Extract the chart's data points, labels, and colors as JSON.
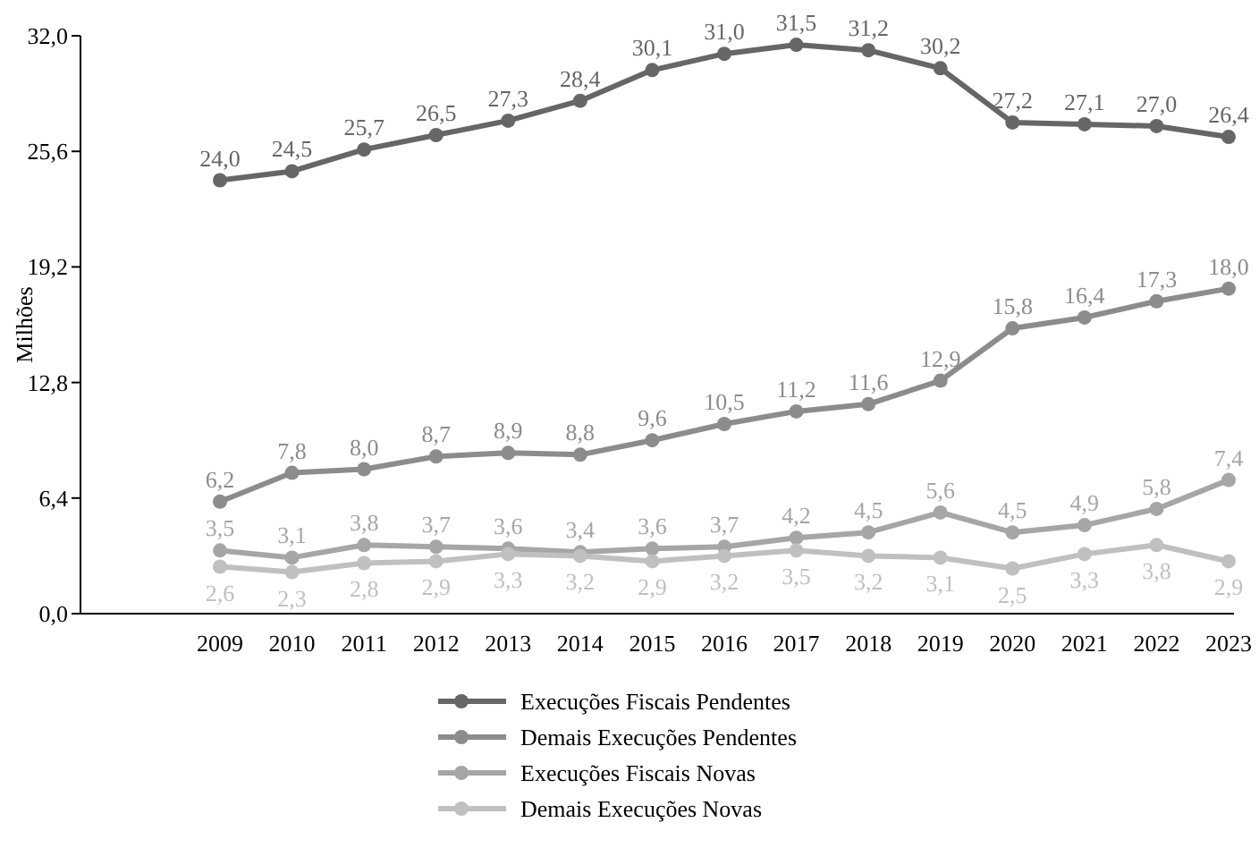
{
  "chart_data": {
    "type": "line",
    "ylabel": "Milhões",
    "categories": [
      "2009",
      "2010",
      "2011",
      "2012",
      "2013",
      "2014",
      "2015",
      "2016",
      "2017",
      "2018",
      "2019",
      "2020",
      "2021",
      "2022",
      "2023"
    ],
    "ylim": [
      0,
      32
    ],
    "yticks": [
      {
        "value": 0,
        "label": "0,0"
      },
      {
        "value": 6.4,
        "label": "6,4"
      },
      {
        "value": 12.8,
        "label": "12,8"
      },
      {
        "value": 19.2,
        "label": "19,2"
      },
      {
        "value": 25.6,
        "label": "25,6"
      },
      {
        "value": 32,
        "label": "32,0"
      }
    ],
    "grid": false,
    "legend": "bottom",
    "marker": "circle",
    "line_style": "solid",
    "series": [
      {
        "name": "Execuções Fiscais Pendentes",
        "color": "#666666",
        "values": [
          24.0,
          24.5,
          25.7,
          26.5,
          27.3,
          28.4,
          30.1,
          31.0,
          31.5,
          31.2,
          30.2,
          27.2,
          27.1,
          27.0,
          26.4
        ],
        "value_labels": [
          "24,0",
          "24,5",
          "25,7",
          "26,5",
          "27,3",
          "28,4",
          "30,1",
          "31,0",
          "31,5",
          "31,2",
          "30,2",
          "27,2",
          "27,1",
          "27,0",
          "26,4"
        ]
      },
      {
        "name": "Demais Execuções Pendentes",
        "color": "#8c8c8c",
        "values": [
          6.2,
          7.8,
          8.0,
          8.7,
          8.9,
          8.8,
          9.6,
          10.5,
          11.2,
          11.6,
          12.9,
          15.8,
          16.4,
          17.3,
          18.0
        ],
        "value_labels": [
          "6,2",
          "7,8",
          "8,0",
          "8,7",
          "8,9",
          "8,8",
          "9,6",
          "10,5",
          "11,2",
          "11,6",
          "12,9",
          "15,8",
          "16,4",
          "17,3",
          "18,0"
        ]
      },
      {
        "name": "Execuções Fiscais Novas",
        "color": "#a6a6a6",
        "values": [
          3.5,
          3.1,
          3.8,
          3.7,
          3.6,
          3.4,
          3.6,
          3.7,
          4.2,
          4.5,
          5.6,
          4.5,
          4.9,
          5.8,
          7.4
        ],
        "value_labels": [
          "3,5",
          "3,1",
          "3,8",
          "3,7",
          "3,6",
          "3,4",
          "3,6",
          "3,7",
          "4,2",
          "4,5",
          "5,6",
          "4,5",
          "4,9",
          "5,8",
          "7,4"
        ]
      },
      {
        "name": "Demais Execuções Novas",
        "color": "#c0c0c0",
        "values": [
          2.6,
          2.3,
          2.8,
          2.9,
          3.3,
          3.2,
          2.9,
          3.2,
          3.5,
          3.2,
          3.1,
          2.5,
          3.3,
          3.8,
          2.9
        ],
        "value_labels": [
          "2,6",
          "2,3",
          "2,8",
          "2,9",
          "3,3",
          "3,2",
          "2,9",
          "3,2",
          "3,5",
          "3,2",
          "3,1",
          "2,5",
          "3,3",
          "3,8",
          "2,9"
        ]
      }
    ]
  }
}
